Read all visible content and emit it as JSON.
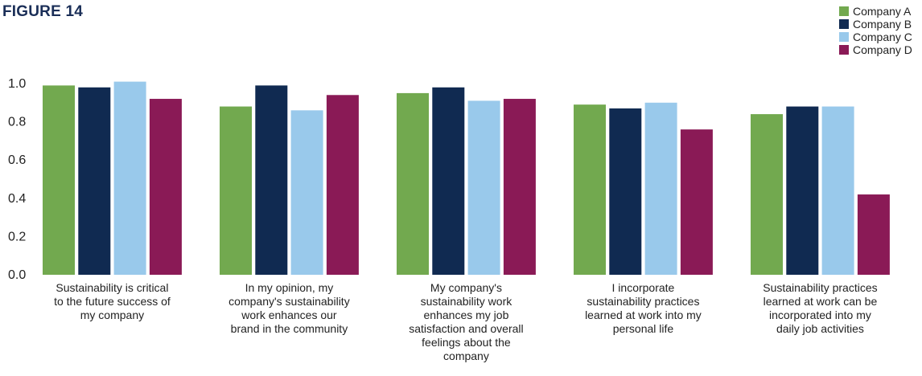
{
  "figure_title": "FIGURE 14",
  "colors": {
    "company_a": "#72a94f",
    "company_b": "#102a51",
    "company_c": "#99c9eb",
    "company_d": "#8a1a56"
  },
  "chart_data": {
    "type": "bar",
    "title": "",
    "xlabel": "",
    "ylabel": "",
    "ylim": [
      0,
      1.0
    ],
    "y_ticks": [
      "0.0",
      "0.2",
      "0.4",
      "0.6",
      "0.8",
      "1.0"
    ],
    "legend_position": "top-right",
    "categories": [
      "Sustainability is critical\nto the future success of\nmy company",
      "In my opinion, my\ncompany's sustainability\nwork enhances our\nbrand in the  community",
      "My company's\nsustainability work\nenhances my job\nsatisfaction and overall\nfeelings about the\ncompany",
      "I incorporate\nsustainability practices\nlearned at work into my\npersonal life",
      "Sustainability practices\nlearned at work can be\nincorporated into my\ndaily job activities"
    ],
    "series": [
      {
        "name": "Company A",
        "color": "#72a94f",
        "values": [
          0.99,
          0.88,
          0.95,
          0.89,
          0.84
        ]
      },
      {
        "name": "Company B",
        "color": "#102a51",
        "values": [
          0.98,
          0.99,
          0.98,
          0.87,
          0.88
        ]
      },
      {
        "name": "Company C",
        "color": "#99c9eb",
        "values": [
          1.01,
          0.86,
          0.91,
          0.9,
          0.88
        ]
      },
      {
        "name": "Company D",
        "color": "#8a1a56",
        "values": [
          0.92,
          0.94,
          0.92,
          0.76,
          0.42
        ]
      }
    ]
  }
}
